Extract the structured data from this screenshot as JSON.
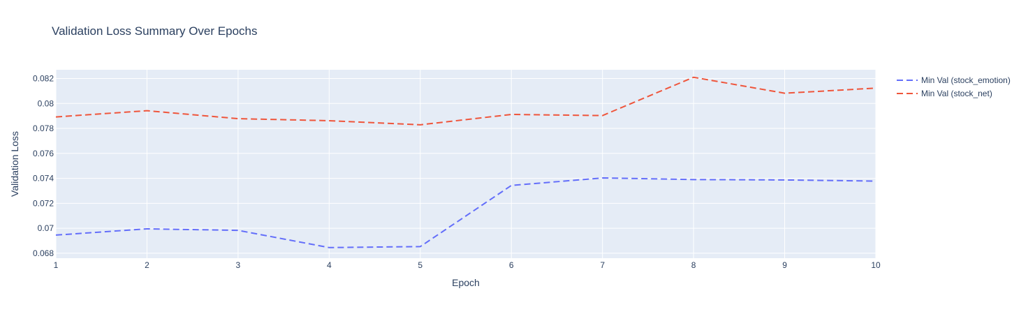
{
  "chart_data": {
    "type": "line",
    "title": "Validation Loss Summary Over Epochs",
    "xlabel": "Epoch",
    "ylabel": "Validation Loss",
    "x": [
      1,
      2,
      3,
      4,
      5,
      6,
      7,
      8,
      9,
      10
    ],
    "xlim": [
      1,
      10
    ],
    "ylim": [
      0.0676,
      0.0827
    ],
    "y_ticks": [
      0.068,
      0.07,
      0.072,
      0.074,
      0.076,
      0.078,
      0.08,
      0.082
    ],
    "y_tick_labels": [
      "0.068",
      "0.07",
      "0.072",
      "0.074",
      "0.076",
      "0.078",
      "0.08",
      "0.082"
    ],
    "x_tick_labels": [
      "1",
      "2",
      "3",
      "4",
      "5",
      "6",
      "7",
      "8",
      "9",
      "10"
    ],
    "grid": true,
    "legend_position": "top-right outside",
    "series": [
      {
        "name": "Min Val (stock_emotion)",
        "color": "#636efa",
        "line_style": "dashed",
        "values": [
          0.06945,
          0.06995,
          0.06983,
          0.06845,
          0.06853,
          0.07343,
          0.07403,
          0.0739,
          0.07387,
          0.07378
        ]
      },
      {
        "name": "Min Val (stock_net)",
        "color": "#ef553b",
        "line_style": "dashed",
        "values": [
          0.07892,
          0.07942,
          0.07878,
          0.07862,
          0.07829,
          0.07912,
          0.07903,
          0.0821,
          0.08082,
          0.08123
        ]
      }
    ],
    "plot_background": "#e5ecf6"
  }
}
